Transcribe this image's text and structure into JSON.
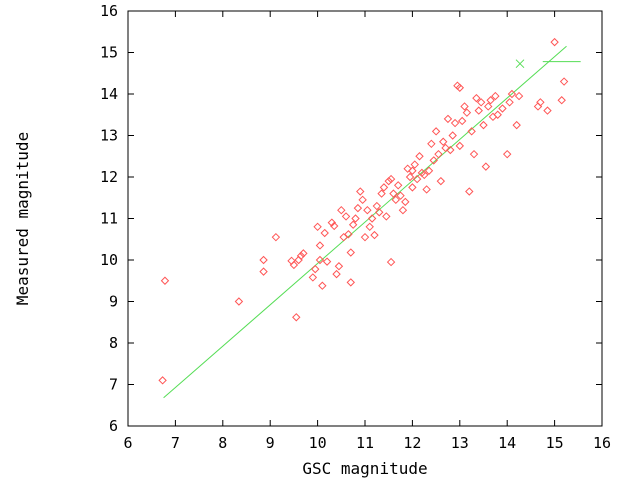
{
  "chart_data": {
    "type": "scatter",
    "title": "",
    "xlabel": "GSC magnitude",
    "ylabel": "Measured magnitude",
    "xlim": [
      6,
      16
    ],
    "ylim": [
      6,
      16
    ],
    "xticks": [
      "6",
      "7",
      "8",
      "9",
      "10",
      "11",
      "12",
      "13",
      "14",
      "15",
      "16"
    ],
    "yticks": [
      "6",
      "7",
      "8",
      "9",
      "10",
      "11",
      "12",
      "13",
      "14",
      "15",
      "16"
    ],
    "grid": false,
    "legend": "none",
    "colors": {
      "points": "#ff5555",
      "fit": "#55dd55",
      "axis": "#000000"
    },
    "series": [
      {
        "type": "scatter",
        "marker": "diamond",
        "points": [
          [
            6.73,
            7.1
          ],
          [
            6.78,
            9.5
          ],
          [
            8.34,
            9.0
          ],
          [
            8.86,
            9.72
          ],
          [
            8.86,
            10.0
          ],
          [
            9.12,
            10.55
          ],
          [
            9.45,
            9.98
          ],
          [
            9.5,
            9.88
          ],
          [
            9.55,
            8.62
          ],
          [
            9.6,
            10.0
          ],
          [
            9.65,
            10.1
          ],
          [
            9.7,
            10.16
          ],
          [
            9.9,
            9.58
          ],
          [
            9.95,
            9.78
          ],
          [
            10.0,
            10.8
          ],
          [
            10.05,
            10.0
          ],
          [
            10.05,
            10.35
          ],
          [
            10.1,
            9.38
          ],
          [
            10.15,
            10.65
          ],
          [
            10.2,
            9.96
          ],
          [
            10.3,
            10.9
          ],
          [
            10.35,
            10.82
          ],
          [
            10.4,
            9.66
          ],
          [
            10.45,
            9.85
          ],
          [
            10.5,
            11.2
          ],
          [
            10.55,
            10.55
          ],
          [
            10.6,
            11.05
          ],
          [
            10.65,
            10.62
          ],
          [
            10.7,
            9.46
          ],
          [
            10.7,
            10.18
          ],
          [
            10.75,
            10.85
          ],
          [
            10.8,
            11.0
          ],
          [
            10.85,
            11.25
          ],
          [
            10.9,
            11.65
          ],
          [
            10.95,
            11.45
          ],
          [
            11.0,
            10.55
          ],
          [
            11.05,
            11.2
          ],
          [
            11.1,
            10.8
          ],
          [
            11.15,
            11.0
          ],
          [
            11.2,
            10.6
          ],
          [
            11.25,
            11.3
          ],
          [
            11.3,
            11.15
          ],
          [
            11.35,
            11.6
          ],
          [
            11.4,
            11.75
          ],
          [
            11.45,
            11.05
          ],
          [
            11.5,
            11.9
          ],
          [
            11.55,
            9.95
          ],
          [
            11.55,
            11.95
          ],
          [
            11.6,
            11.6
          ],
          [
            11.65,
            11.45
          ],
          [
            11.7,
            11.8
          ],
          [
            11.75,
            11.55
          ],
          [
            11.8,
            11.2
          ],
          [
            11.85,
            11.4
          ],
          [
            11.9,
            12.2
          ],
          [
            11.95,
            12.0
          ],
          [
            12.0,
            12.15
          ],
          [
            12.0,
            11.75
          ],
          [
            12.05,
            12.3
          ],
          [
            12.1,
            11.95
          ],
          [
            12.15,
            12.5
          ],
          [
            12.2,
            12.1
          ],
          [
            12.25,
            12.05
          ],
          [
            12.3,
            11.7
          ],
          [
            12.35,
            12.15
          ],
          [
            12.4,
            12.8
          ],
          [
            12.45,
            12.4
          ],
          [
            12.5,
            13.1
          ],
          [
            12.55,
            12.55
          ],
          [
            12.6,
            11.9
          ],
          [
            12.65,
            12.85
          ],
          [
            12.7,
            12.7
          ],
          [
            12.75,
            13.4
          ],
          [
            12.8,
            12.65
          ],
          [
            12.85,
            13.0
          ],
          [
            12.9,
            13.3
          ],
          [
            12.95,
            14.2
          ],
          [
            13.0,
            12.75
          ],
          [
            13.0,
            14.15
          ],
          [
            13.05,
            13.35
          ],
          [
            13.1,
            13.7
          ],
          [
            13.15,
            13.55
          ],
          [
            13.2,
            11.65
          ],
          [
            13.25,
            13.1
          ],
          [
            13.3,
            12.55
          ],
          [
            13.35,
            13.9
          ],
          [
            13.4,
            13.6
          ],
          [
            13.45,
            13.8
          ],
          [
            13.5,
            13.25
          ],
          [
            13.55,
            12.25
          ],
          [
            13.6,
            13.7
          ],
          [
            13.65,
            13.85
          ],
          [
            13.7,
            13.45
          ],
          [
            13.75,
            13.95
          ],
          [
            13.8,
            13.5
          ],
          [
            13.9,
            13.65
          ],
          [
            14.0,
            12.55
          ],
          [
            14.05,
            13.8
          ],
          [
            14.1,
            14.0
          ],
          [
            14.2,
            13.25
          ],
          [
            14.25,
            13.95
          ],
          [
            14.65,
            13.7
          ],
          [
            14.7,
            13.8
          ],
          [
            14.85,
            13.6
          ],
          [
            15.0,
            15.25
          ],
          [
            15.15,
            13.85
          ],
          [
            15.2,
            14.3
          ]
        ]
      },
      {
        "type": "line",
        "points": [
          [
            6.75,
            6.68
          ],
          [
            15.25,
            15.15
          ]
        ]
      }
    ],
    "annotations": [
      {
        "type": "cross",
        "x": 14.27,
        "y": 14.73
      },
      {
        "type": "segment",
        "x1": 14.75,
        "x2": 15.55,
        "y": 14.78
      }
    ]
  }
}
